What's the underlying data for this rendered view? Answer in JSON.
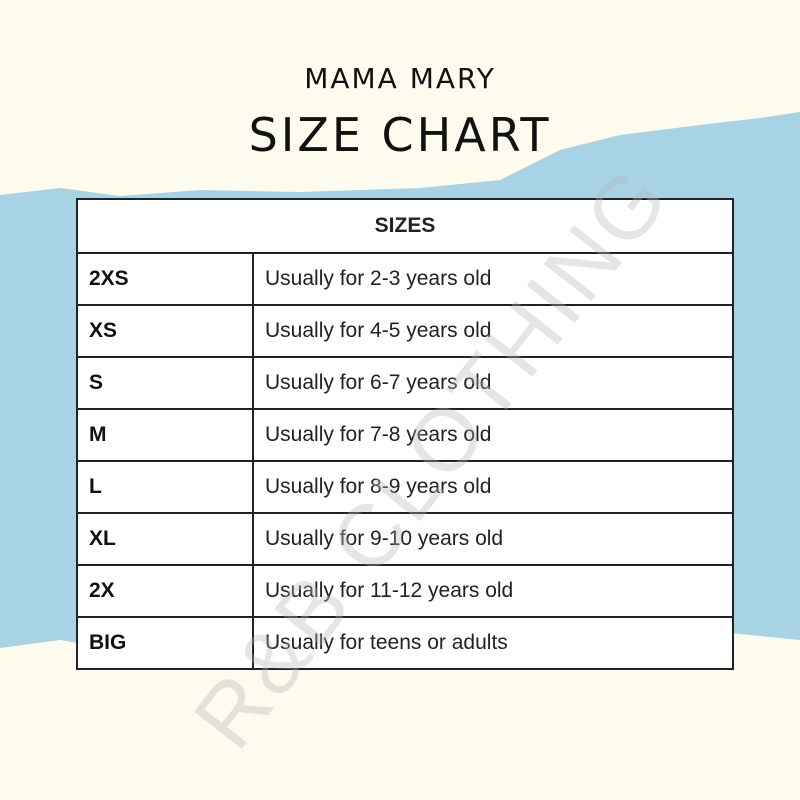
{
  "header": {
    "brand": "MAMA MARY",
    "title": "SIZE CHART"
  },
  "table": {
    "heading": "SIZES",
    "rows": [
      {
        "size": "2XS",
        "desc": "Usually for 2-3 years old"
      },
      {
        "size": "XS",
        "desc": "Usually for 4-5 years old"
      },
      {
        "size": "S",
        "desc": "Usually for 6-7 years old"
      },
      {
        "size": "M",
        "desc": "Usually for 7-8 years old"
      },
      {
        "size": "L",
        "desc": "Usually for 8-9 years old"
      },
      {
        "size": "XL",
        "desc": "Usually for 9-10 years old"
      },
      {
        "size": "2X",
        "desc": "Usually for 11-12 years old"
      },
      {
        "size": "BIG",
        "desc": "Usually for teens or adults"
      }
    ]
  },
  "watermark": "R&B CLOTHING",
  "colors": {
    "background": "#fcfbee",
    "accent_blue": "#a8d3e5"
  }
}
